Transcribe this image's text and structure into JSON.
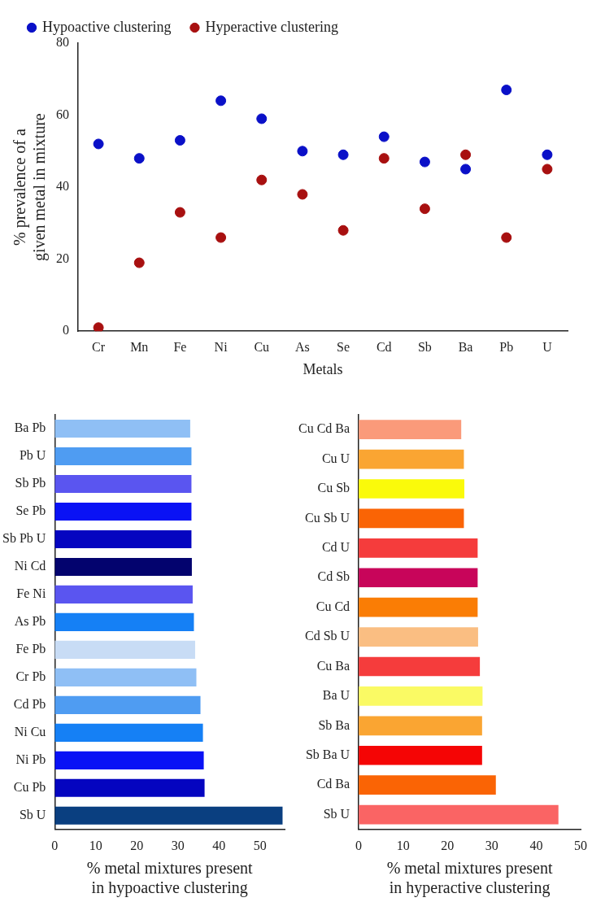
{
  "chart_data": [
    {
      "type": "scatter",
      "xlabel": "Metals",
      "ylabel": "% prevalence of a given metal in mixture",
      "categories": [
        "Cr",
        "Mn",
        "Fe",
        "Ni",
        "Cu",
        "As",
        "Se",
        "Cd",
        "Sb",
        "Ba",
        "Pb",
        "U"
      ],
      "ylim": [
        0,
        80
      ],
      "yticks": [
        0,
        20,
        40,
        60,
        80
      ],
      "legend": "top",
      "marker": "circle",
      "grid": false,
      "series": [
        {
          "name": "Hypoactive clustering",
          "color": "#0a10c8",
          "values": [
            52,
            48,
            53,
            64,
            59,
            50,
            49,
            54,
            47,
            45,
            67,
            49
          ]
        },
        {
          "name": "Hyperactive clustering",
          "color": "#a81010",
          "values": [
            1,
            19,
            33,
            26,
            42,
            38,
            28,
            48,
            34,
            49,
            26,
            45
          ]
        }
      ]
    },
    {
      "type": "bar",
      "orientation": "horizontal",
      "xlabel": "% metal mixtures present in hypoactive clustering",
      "categories": [
        "Ba Pb",
        "Pb U",
        "Sb Pb",
        "Se Pb",
        "Sb Pb U",
        "Ni Cd",
        "Fe Ni",
        "As Pb",
        "Fe Pb",
        "Cr Pb",
        "Cd Pb",
        "Ni Cu",
        "Ni Pb",
        "Cu Pb",
        "Sb U"
      ],
      "values": [
        33.0,
        33.3,
        33.3,
        33.3,
        33.3,
        33.4,
        33.6,
        33.9,
        34.2,
        34.5,
        35.5,
        36.1,
        36.3,
        36.5,
        55.5
      ],
      "colors": [
        "#8fbff5",
        "#4f9cf2",
        "#5a55f0",
        "#0a12f5",
        "#0505c0",
        "#03036e",
        "#5a55f0",
        "#1580f5",
        "#c8dcf5",
        "#8fbff5",
        "#4f9cf2",
        "#1580f5",
        "#0a12f5",
        "#0505c0",
        "#0a3f80"
      ],
      "xlim": [
        0,
        56
      ],
      "xticks": [
        0,
        10,
        20,
        30,
        40,
        50
      ],
      "grid": false
    },
    {
      "type": "bar",
      "orientation": "horizontal",
      "xlabel": "% metal mixtures present in hyperactive clustering",
      "categories": [
        "Cu Cd Ba",
        "Cu U",
        "Cu Sb",
        "Cu Sb U",
        "Cd U",
        "Cd Sb",
        "Cu Cd",
        "Cd Sb U",
        "Cu Ba",
        "Ba U",
        "Sb Ba",
        "Sb Ba U",
        "Cd Ba",
        "Sb U"
      ],
      "values": [
        23.1,
        23.7,
        23.8,
        23.7,
        26.8,
        26.8,
        26.8,
        26.9,
        27.3,
        27.9,
        27.8,
        27.8,
        30.9,
        45.0
      ],
      "colors": [
        "#fa9a7a",
        "#faa532",
        "#fafa0a",
        "#fa6405",
        "#f53c3c",
        "#c8055a",
        "#fa7d05",
        "#fabe82",
        "#f53c3c",
        "#fafa64",
        "#faa532",
        "#f50505",
        "#fa6405",
        "#fa6464"
      ],
      "xlim": [
        0,
        50
      ],
      "xticks": [
        0,
        10,
        20,
        30,
        40,
        50
      ],
      "grid": false
    }
  ]
}
